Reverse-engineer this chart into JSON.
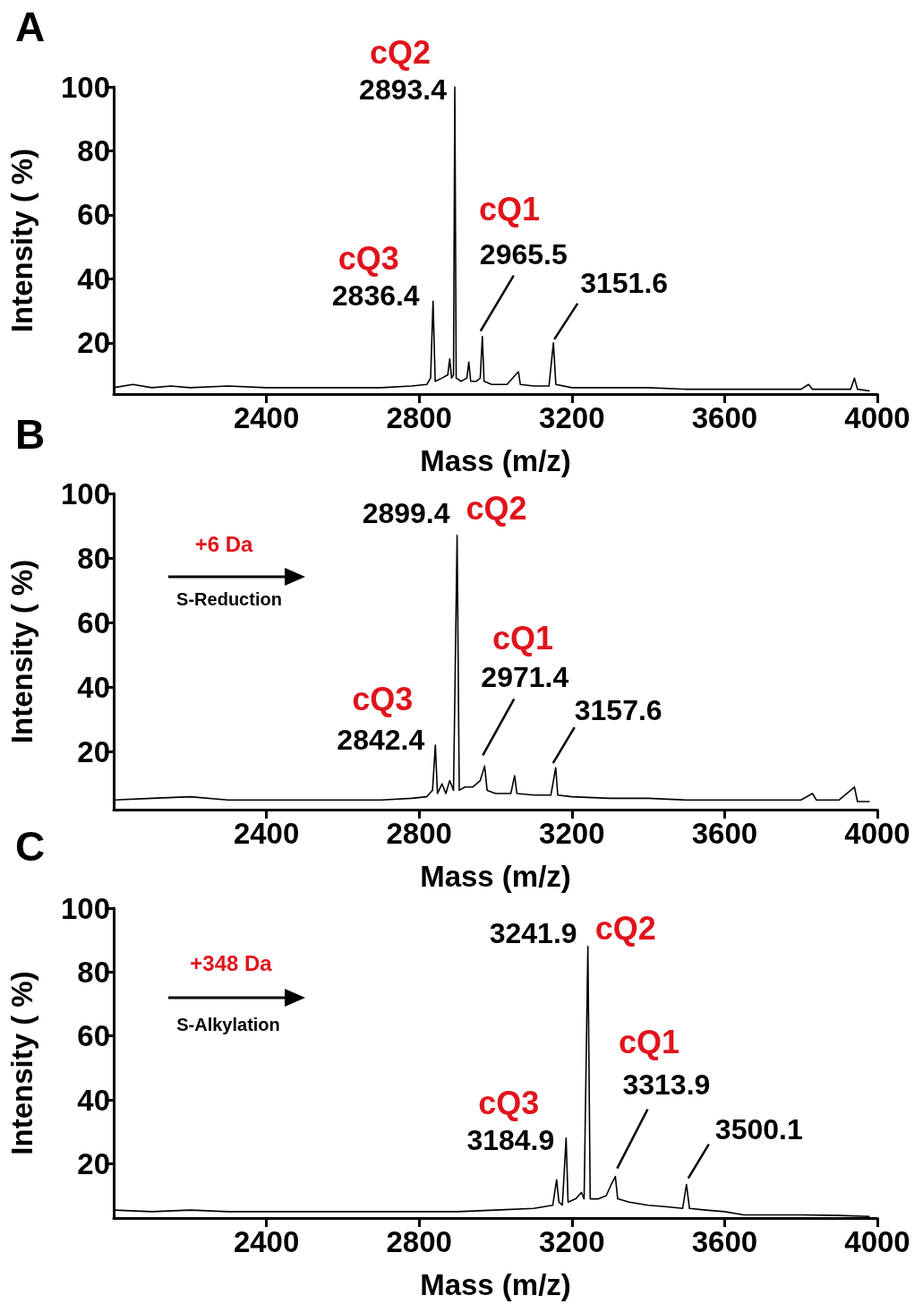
{
  "chart_data": [
    {
      "type": "line",
      "title": "A",
      "xlabel": "Mass (m/z)",
      "ylabel": "Intensity ( %)",
      "color": "#000000",
      "x": [
        2000,
        2050,
        2100,
        2150,
        2200,
        2300,
        2400,
        2500,
        2600,
        2700,
        2780,
        2820,
        2830,
        2836.4,
        2842,
        2860,
        2875,
        2880,
        2885,
        2890,
        2893.4,
        2897,
        2910,
        2925,
        2930,
        2935,
        2950,
        2960,
        2965.5,
        2970,
        2990,
        3030,
        3060,
        3065,
        3100,
        3140,
        3151.6,
        3158,
        3200,
        3300,
        3400,
        3500,
        3600,
        3700,
        3800,
        3820,
        3830,
        3900,
        3930,
        3940,
        3948,
        3980
      ],
      "values": [
        6,
        7,
        6,
        6.5,
        6,
        6.5,
        6,
        6,
        6,
        6,
        6.5,
        7,
        9,
        33,
        8,
        9,
        10,
        15,
        9,
        10,
        100,
        9,
        8,
        9,
        14,
        8,
        8,
        9,
        22,
        8,
        7,
        7,
        11,
        7,
        6.5,
        6.5,
        20,
        7,
        6,
        6,
        6,
        5.5,
        5.5,
        5.5,
        5.5,
        7,
        5.5,
        5.5,
        5.5,
        9,
        5.5,
        5
      ],
      "xlim": [
        2000,
        4000
      ],
      "ylim": [
        4,
        100
      ],
      "xticks": [
        2400,
        2800,
        3200,
        3600,
        4000
      ],
      "yticks": [
        20,
        40,
        60,
        80,
        100
      ],
      "annotations": [
        {
          "text": "cQ3",
          "x": 2836.4,
          "y": 33
        },
        {
          "text": "2836.4",
          "x": 2836.4,
          "y": 33
        },
        {
          "text": "cQ2",
          "x": 2893.4,
          "y": 100
        },
        {
          "text": "2893.4",
          "x": 2893.4,
          "y": 100
        },
        "cQ1",
        {
          "text": "2965.5",
          "x": 2965.5,
          "y": 22
        },
        {
          "text": "3151.6",
          "x": 3151.6,
          "y": 20
        }
      ]
    },
    {
      "type": "line",
      "title": "B",
      "xlabel": "Mass (m/z)",
      "ylabel": "Intensity ( %)",
      "color": "#000000",
      "x": [
        2000,
        2100,
        2200,
        2300,
        2400,
        2500,
        2600,
        2700,
        2780,
        2820,
        2835,
        2842.4,
        2848,
        2860,
        2870,
        2880,
        2890,
        2899.4,
        2905,
        2920,
        2940,
        2960,
        2971.4,
        2978,
        3000,
        3040,
        3050,
        3056,
        3100,
        3145,
        3157.6,
        3163,
        3200,
        3300,
        3400,
        3500,
        3600,
        3700,
        3800,
        3830,
        3840,
        3900,
        3940,
        3948,
        3980
      ],
      "values": [
        5,
        5.5,
        6,
        5,
        5,
        5,
        5,
        5,
        5.5,
        6,
        8,
        22,
        7,
        10,
        7,
        11,
        8,
        87,
        8,
        9,
        9,
        11,
        15.5,
        8,
        7,
        7,
        12.5,
        7,
        6.5,
        6.5,
        15,
        6.5,
        6,
        5.5,
        5.5,
        5,
        5,
        5,
        5,
        7,
        5,
        5,
        9,
        4.5,
        4.5
      ],
      "xlim": [
        2000,
        4000
      ],
      "ylim": [
        2,
        100
      ],
      "xticks": [
        2400,
        2800,
        3200,
        3600,
        4000
      ],
      "yticks": [
        20,
        40,
        60,
        80,
        100
      ],
      "annotations": [
        "+6 Da",
        "S-Reduction",
        {
          "text": "cQ3",
          "x": 2842.4,
          "y": 22
        },
        {
          "text": "2842.4",
          "x": 2842.4,
          "y": 22
        },
        {
          "text": "2899.4",
          "x": 2899.4,
          "y": 87
        },
        {
          "text": "cQ2",
          "x": 2899.4,
          "y": 87
        },
        "cQ1",
        {
          "text": "2971.4",
          "x": 2971.4,
          "y": 15.5
        },
        {
          "text": "3157.6",
          "x": 3157.6,
          "y": 15
        }
      ]
    },
    {
      "type": "line",
      "title": "C",
      "xlabel": "Mass (m/z)",
      "ylabel": "Intensity ( %)",
      "color": "#000000",
      "x": [
        2000,
        2100,
        2200,
        2300,
        2400,
        2500,
        2600,
        2700,
        2800,
        2900,
        3000,
        3100,
        3150,
        3160,
        3166,
        3175,
        3184.9,
        3190,
        3210,
        3225,
        3232,
        3241.9,
        3248,
        3270,
        3290,
        3305,
        3313.9,
        3320,
        3350,
        3400,
        3450,
        3490,
        3500.1,
        3508,
        3550,
        3600,
        3650,
        3700,
        3800,
        3900,
        3980
      ],
      "values": [
        5.5,
        5,
        5.5,
        5,
        5,
        5,
        5,
        5,
        5,
        5,
        5.5,
        6,
        7,
        15,
        8,
        7,
        28,
        8,
        9,
        11,
        9,
        88,
        9,
        9,
        10,
        14,
        16,
        9,
        8,
        7,
        6.5,
        6,
        13.5,
        6,
        5.5,
        5,
        4,
        4,
        4,
        3.8,
        3.5
      ],
      "xlim": [
        2000,
        4000
      ],
      "ylim": [
        3,
        100
      ],
      "xticks": [
        2400,
        2800,
        3200,
        3600,
        4000
      ],
      "yticks": [
        20,
        40,
        60,
        80,
        100
      ],
      "annotations": [
        "+348 Da",
        "S-Alkylation",
        {
          "text": "cQ3",
          "x": 3184.9,
          "y": 28
        },
        {
          "text": "3184.9",
          "x": 3184.9,
          "y": 28
        },
        {
          "text": "3241.9",
          "x": 3241.9,
          "y": 88
        },
        {
          "text": "cQ2",
          "x": 3241.9,
          "y": 88
        },
        "cQ1",
        {
          "text": "3313.9",
          "x": 3313.9,
          "y": 16
        },
        {
          "text": "3500.1",
          "x": 3500.1,
          "y": 13.5
        }
      ]
    }
  ]
}
